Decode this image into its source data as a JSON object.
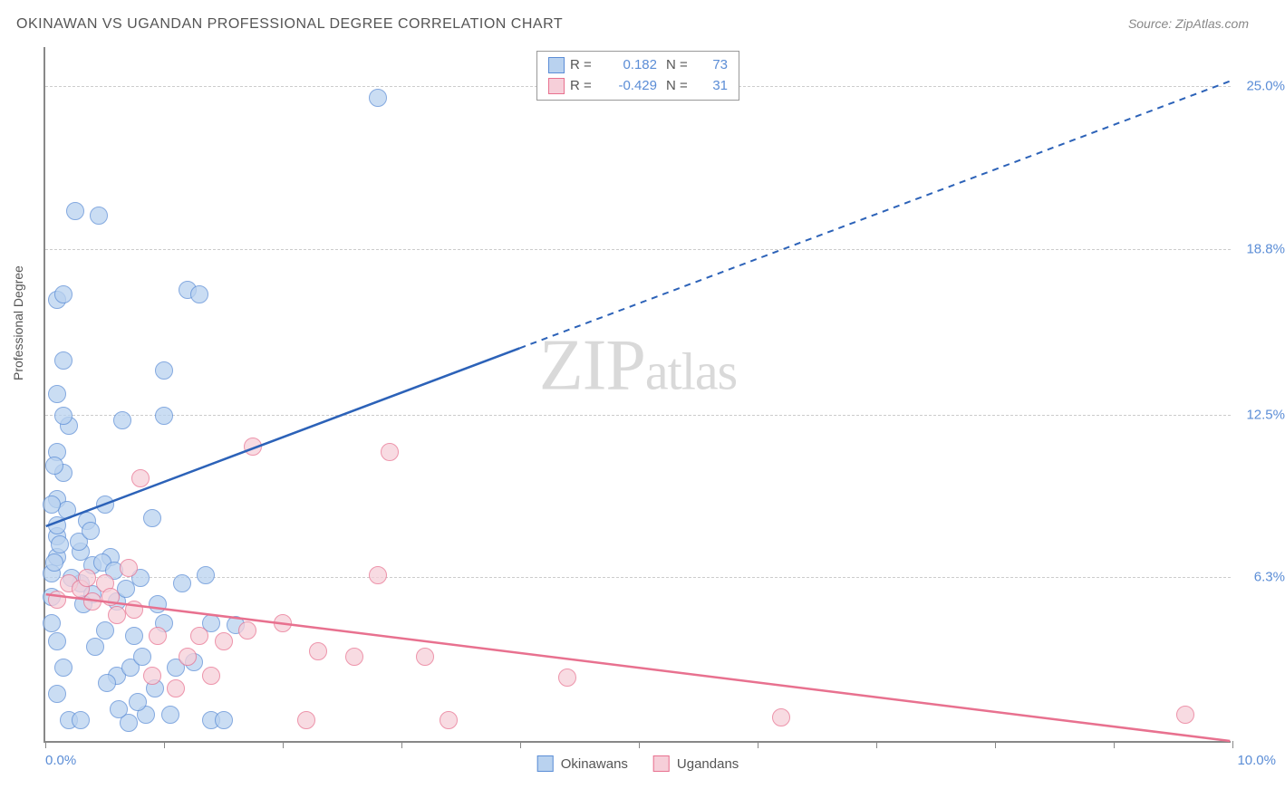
{
  "title": "OKINAWAN VS UGANDAN PROFESSIONAL DEGREE CORRELATION CHART",
  "source": "Source: ZipAtlas.com",
  "ylabel": "Professional Degree",
  "watermark_zip": "ZIP",
  "watermark_atlas": "atlas",
  "xaxis": {
    "min": 0.0,
    "max": 10.0,
    "min_label": "0.0%",
    "max_label": "10.0%",
    "tick_positions": [
      0,
      1,
      2,
      3,
      4,
      5,
      6,
      7,
      8,
      9,
      10
    ]
  },
  "yaxis": {
    "min": 0.0,
    "max": 26.5,
    "gridlines": [
      {
        "value": 6.3,
        "label": "6.3%"
      },
      {
        "value": 12.5,
        "label": "12.5%"
      },
      {
        "value": 18.8,
        "label": "18.8%"
      },
      {
        "value": 25.0,
        "label": "25.0%"
      }
    ]
  },
  "series": [
    {
      "name": "Okinawans",
      "fill": "#b9d2ef",
      "stroke": "#5b8dd6",
      "line_color": "#2c62b8",
      "r_value": "0.182",
      "n_value": "73",
      "marker_radius": 10,
      "trend": {
        "x1": 0.0,
        "y1": 8.2,
        "x2": 4.0,
        "y2": 15.0,
        "x1d": 4.0,
        "y1d": 15.0,
        "x2d": 10.0,
        "y2d": 25.2
      },
      "points": [
        {
          "x": 0.05,
          "y": 6.4
        },
        {
          "x": 0.05,
          "y": 5.5
        },
        {
          "x": 0.1,
          "y": 7.0
        },
        {
          "x": 0.1,
          "y": 7.8
        },
        {
          "x": 0.1,
          "y": 8.2
        },
        {
          "x": 0.1,
          "y": 9.2
        },
        {
          "x": 0.15,
          "y": 10.2
        },
        {
          "x": 0.1,
          "y": 11.0
        },
        {
          "x": 0.2,
          "y": 12.0
        },
        {
          "x": 0.15,
          "y": 12.4
        },
        {
          "x": 0.1,
          "y": 13.2
        },
        {
          "x": 0.15,
          "y": 14.5
        },
        {
          "x": 0.1,
          "y": 16.8
        },
        {
          "x": 0.15,
          "y": 17.0
        },
        {
          "x": 0.25,
          "y": 20.2
        },
        {
          "x": 0.45,
          "y": 20.0
        },
        {
          "x": 0.05,
          "y": 4.5
        },
        {
          "x": 0.1,
          "y": 3.8
        },
        {
          "x": 0.15,
          "y": 2.8
        },
        {
          "x": 0.1,
          "y": 1.8
        },
        {
          "x": 0.2,
          "y": 0.8
        },
        {
          "x": 0.3,
          "y": 0.8
        },
        {
          "x": 0.3,
          "y": 6.0
        },
        {
          "x": 0.3,
          "y": 7.2
        },
        {
          "x": 0.35,
          "y": 8.4
        },
        {
          "x": 0.4,
          "y": 5.6
        },
        {
          "x": 0.4,
          "y": 6.7
        },
        {
          "x": 0.5,
          "y": 9.0
        },
        {
          "x": 0.5,
          "y": 4.2
        },
        {
          "x": 0.55,
          "y": 7.0
        },
        {
          "x": 0.6,
          "y": 5.3
        },
        {
          "x": 0.6,
          "y": 2.5
        },
        {
          "x": 0.65,
          "y": 12.2
        },
        {
          "x": 0.7,
          "y": 0.7
        },
        {
          "x": 0.75,
          "y": 4.0
        },
        {
          "x": 0.8,
          "y": 6.2
        },
        {
          "x": 0.85,
          "y": 1.0
        },
        {
          "x": 0.9,
          "y": 8.5
        },
        {
          "x": 1.0,
          "y": 14.1
        },
        {
          "x": 1.0,
          "y": 12.4
        },
        {
          "x": 1.0,
          "y": 4.5
        },
        {
          "x": 1.05,
          "y": 1.0
        },
        {
          "x": 1.15,
          "y": 6.0
        },
        {
          "x": 1.2,
          "y": 17.2
        },
        {
          "x": 1.3,
          "y": 17.0
        },
        {
          "x": 1.4,
          "y": 0.8
        },
        {
          "x": 1.4,
          "y": 4.5
        },
        {
          "x": 1.5,
          "y": 0.8
        },
        {
          "x": 1.6,
          "y": 4.4
        },
        {
          "x": 2.8,
          "y": 24.5
        },
        {
          "x": 0.08,
          "y": 6.8
        },
        {
          "x": 0.12,
          "y": 7.5
        },
        {
          "x": 0.18,
          "y": 8.8
        },
        {
          "x": 0.22,
          "y": 6.2
        },
        {
          "x": 0.28,
          "y": 7.6
        },
        {
          "x": 0.32,
          "y": 5.2
        },
        {
          "x": 0.38,
          "y": 8.0
        },
        {
          "x": 0.42,
          "y": 3.6
        },
        {
          "x": 0.48,
          "y": 6.8
        },
        {
          "x": 0.52,
          "y": 2.2
        },
        {
          "x": 0.58,
          "y": 6.5
        },
        {
          "x": 0.62,
          "y": 1.2
        },
        {
          "x": 0.68,
          "y": 5.8
        },
        {
          "x": 0.72,
          "y": 2.8
        },
        {
          "x": 0.78,
          "y": 1.5
        },
        {
          "x": 0.82,
          "y": 3.2
        },
        {
          "x": 0.92,
          "y": 2.0
        },
        {
          "x": 0.95,
          "y": 5.2
        },
        {
          "x": 1.1,
          "y": 2.8
        },
        {
          "x": 1.25,
          "y": 3.0
        },
        {
          "x": 1.35,
          "y": 6.3
        },
        {
          "x": 0.05,
          "y": 9.0
        },
        {
          "x": 0.08,
          "y": 10.5
        }
      ]
    },
    {
      "name": "Ugandans",
      "fill": "#f6cfd9",
      "stroke": "#e8718f",
      "line_color": "#e8718f",
      "r_value": "-0.429",
      "n_value": "31",
      "marker_radius": 10,
      "trend": {
        "x1": 0.0,
        "y1": 5.6,
        "x2": 10.0,
        "y2": 0.0
      },
      "points": [
        {
          "x": 0.1,
          "y": 5.4
        },
        {
          "x": 0.2,
          "y": 6.0
        },
        {
          "x": 0.3,
          "y": 5.8
        },
        {
          "x": 0.35,
          "y": 6.2
        },
        {
          "x": 0.4,
          "y": 5.3
        },
        {
          "x": 0.5,
          "y": 6.0
        },
        {
          "x": 0.55,
          "y": 5.5
        },
        {
          "x": 0.6,
          "y": 4.8
        },
        {
          "x": 0.7,
          "y": 6.6
        },
        {
          "x": 0.75,
          "y": 5.0
        },
        {
          "x": 0.8,
          "y": 10.0
        },
        {
          "x": 0.9,
          "y": 2.5
        },
        {
          "x": 0.95,
          "y": 4.0
        },
        {
          "x": 1.1,
          "y": 2.0
        },
        {
          "x": 1.2,
          "y": 3.2
        },
        {
          "x": 1.3,
          "y": 4.0
        },
        {
          "x": 1.4,
          "y": 2.5
        },
        {
          "x": 1.5,
          "y": 3.8
        },
        {
          "x": 1.7,
          "y": 4.2
        },
        {
          "x": 1.75,
          "y": 11.2
        },
        {
          "x": 2.0,
          "y": 4.5
        },
        {
          "x": 2.2,
          "y": 0.8
        },
        {
          "x": 2.3,
          "y": 3.4
        },
        {
          "x": 2.6,
          "y": 3.2
        },
        {
          "x": 2.8,
          "y": 6.3
        },
        {
          "x": 2.9,
          "y": 11.0
        },
        {
          "x": 3.2,
          "y": 3.2
        },
        {
          "x": 3.4,
          "y": 0.8
        },
        {
          "x": 4.4,
          "y": 2.4
        },
        {
          "x": 6.2,
          "y": 0.9
        },
        {
          "x": 9.6,
          "y": 1.0
        }
      ]
    }
  ],
  "bottom_legend": [
    {
      "label": "Okinawans",
      "fill": "#b9d2ef",
      "stroke": "#5b8dd6"
    },
    {
      "label": "Ugandans",
      "fill": "#f6cfd9",
      "stroke": "#e8718f"
    }
  ]
}
